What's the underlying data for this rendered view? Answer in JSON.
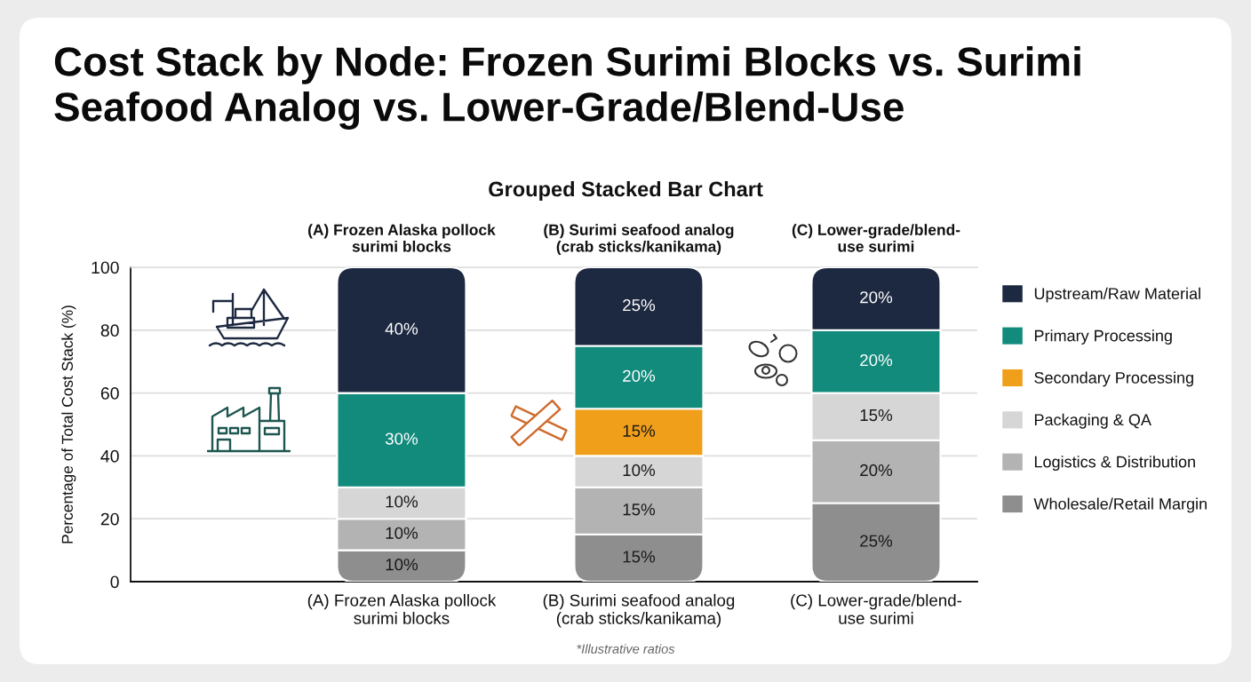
{
  "chart_data": {
    "type": "bar",
    "title": "Cost Stack by Node: Frozen Surimi Blocks vs. Surimi Seafood Analog vs. Lower-Grade/Blend-Use",
    "subtitle": "Grouped Stacked Bar Chart",
    "ylabel": "Percentage of Total Cost Stack (%)",
    "categories": [
      "(A) Frozen Alaska pollock\nsurimi blocks",
      "(B) Surimi seafood analog\n(crab sticks/kanikama)",
      "(C) Lower-grade/blend-\nuse surimi"
    ],
    "stacked": true,
    "series": [
      {
        "name": "Wholesale/Retail Margin",
        "color": "#8e8e8e",
        "values": [
          10,
          15,
          25
        ],
        "value_labels": [
          "10%",
          "15%",
          "25%"
        ]
      },
      {
        "name": "Logistics & Distribution",
        "color": "#b3b3b3",
        "values": [
          10,
          15,
          20
        ],
        "value_labels": [
          "10%",
          "15%",
          "20%"
        ]
      },
      {
        "name": "Packaging & QA",
        "color": "#d6d6d6",
        "values": [
          10,
          10,
          15
        ],
        "value_labels": [
          "10%",
          "10%",
          "15%"
        ]
      },
      {
        "name": "Secondary Processing",
        "color": "#f09f1b",
        "values": [
          null,
          15,
          null
        ],
        "value_labels": [
          null,
          "15%",
          null
        ]
      },
      {
        "name": "Primary Processing",
        "color": "#138b7c",
        "values": [
          30,
          20,
          20
        ],
        "value_labels": [
          "30%",
          "20%",
          "20%"
        ]
      },
      {
        "name": "Upstream/Raw Material",
        "color": "#1d2940",
        "values": [
          40,
          25,
          20
        ],
        "value_labels": [
          "40%",
          "25%",
          "20%"
        ]
      }
    ],
    "ylim": [
      0,
      100
    ],
    "yticks": [
      0,
      20,
      40,
      60,
      80,
      100
    ],
    "grid": "y",
    "legend": "right",
    "annotations": [
      "*Illustrative ratios"
    ]
  }
}
